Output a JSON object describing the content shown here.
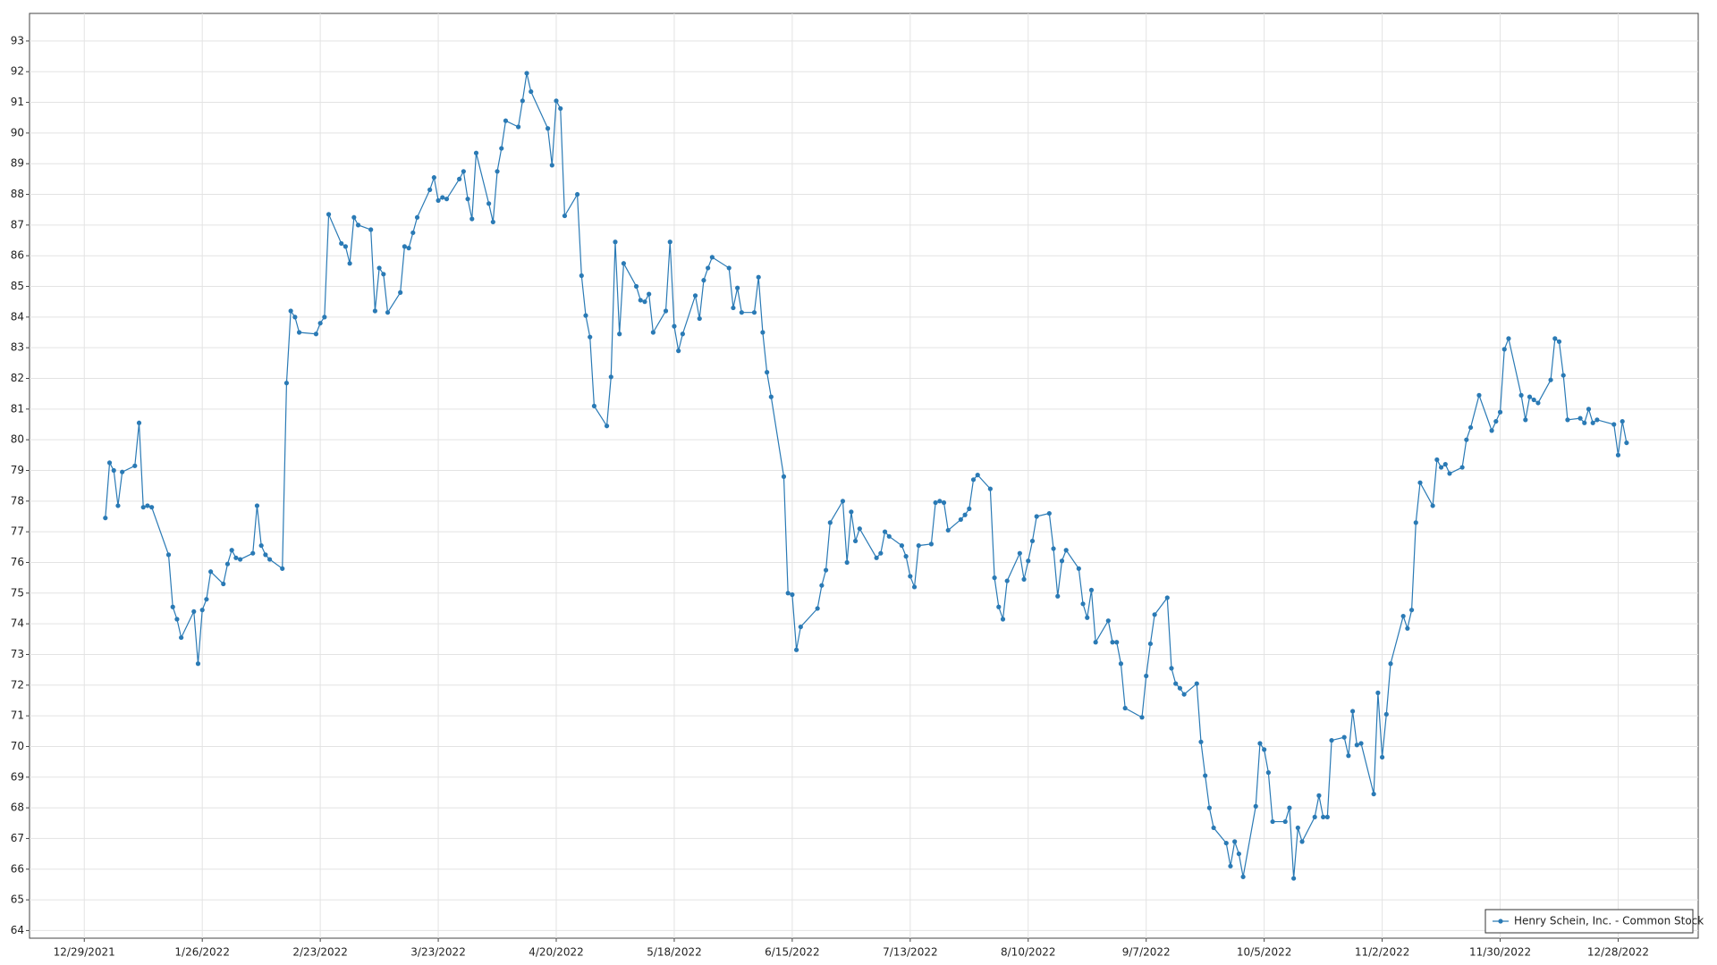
{
  "chart_data": {
    "type": "line",
    "legend": "lower right",
    "grid": true,
    "xlim": [
      "12/16/2021",
      "1/16/2023"
    ],
    "xticks": [
      "12/29/2021",
      "1/26/2022",
      "2/23/2022",
      "3/23/2022",
      "4/20/2022",
      "5/18/2022",
      "6/15/2022",
      "7/13/2022",
      "8/10/2022",
      "9/7/2022",
      "10/5/2022",
      "11/2/2022",
      "11/30/2022",
      "12/28/2022"
    ],
    "ylim": [
      63.75,
      93.9
    ],
    "yticks": [
      64,
      65,
      66,
      67,
      68,
      69,
      70,
      71,
      72,
      73,
      74,
      75,
      76,
      77,
      78,
      79,
      80,
      81,
      82,
      83,
      84,
      85,
      86,
      87,
      88,
      89,
      90,
      91,
      92,
      93
    ],
    "x": [
      "1/3/2022",
      "1/4/2022",
      "1/5/2022",
      "1/6/2022",
      "1/7/2022",
      "1/10/2022",
      "1/11/2022",
      "1/12/2022",
      "1/13/2022",
      "1/14/2022",
      "1/18/2022",
      "1/19/2022",
      "1/20/2022",
      "1/21/2022",
      "1/24/2022",
      "1/25/2022",
      "1/26/2022",
      "1/27/2022",
      "1/28/2022",
      "1/31/2022",
      "2/1/2022",
      "2/2/2022",
      "2/3/2022",
      "2/4/2022",
      "2/7/2022",
      "2/8/2022",
      "2/9/2022",
      "2/10/2022",
      "2/11/2022",
      "2/14/2022",
      "2/15/2022",
      "2/16/2022",
      "2/17/2022",
      "2/18/2022",
      "2/22/2022",
      "2/23/2022",
      "2/24/2022",
      "2/25/2022",
      "2/28/2022",
      "3/1/2022",
      "3/2/2022",
      "3/3/2022",
      "3/4/2022",
      "3/7/2022",
      "3/8/2022",
      "3/9/2022",
      "3/10/2022",
      "3/11/2022",
      "3/14/2022",
      "3/15/2022",
      "3/16/2022",
      "3/17/2022",
      "3/18/2022",
      "3/21/2022",
      "3/22/2022",
      "3/23/2022",
      "3/24/2022",
      "3/25/2022",
      "3/28/2022",
      "3/29/2022",
      "3/30/2022",
      "3/31/2022",
      "4/1/2022",
      "4/4/2022",
      "4/5/2022",
      "4/6/2022",
      "4/7/2022",
      "4/8/2022",
      "4/11/2022",
      "4/12/2022",
      "4/13/2022",
      "4/14/2022",
      "4/18/2022",
      "4/19/2022",
      "4/20/2022",
      "4/21/2022",
      "4/22/2022",
      "4/25/2022",
      "4/26/2022",
      "4/27/2022",
      "4/28/2022",
      "4/29/2022",
      "5/2/2022",
      "5/3/2022",
      "5/4/2022",
      "5/5/2022",
      "5/6/2022",
      "5/9/2022",
      "5/10/2022",
      "5/11/2022",
      "5/12/2022",
      "5/13/2022",
      "5/16/2022",
      "5/17/2022",
      "5/18/2022",
      "5/19/2022",
      "5/20/2022",
      "5/23/2022",
      "5/24/2022",
      "5/25/2022",
      "5/26/2022",
      "5/27/2022",
      "5/31/2022",
      "6/1/2022",
      "6/2/2022",
      "6/3/2022",
      "6/6/2022",
      "6/7/2022",
      "6/8/2022",
      "6/9/2022",
      "6/10/2022",
      "6/13/2022",
      "6/14/2022",
      "6/15/2022",
      "6/16/2022",
      "6/17/2022",
      "6/21/2022",
      "6/22/2022",
      "6/23/2022",
      "6/24/2022",
      "6/27/2022",
      "6/28/2022",
      "6/29/2022",
      "6/30/2022",
      "7/1/2022",
      "7/5/2022",
      "7/6/2022",
      "7/7/2022",
      "7/8/2022",
      "7/11/2022",
      "7/12/2022",
      "7/13/2022",
      "7/14/2022",
      "7/15/2022",
      "7/18/2022",
      "7/19/2022",
      "7/20/2022",
      "7/21/2022",
      "7/22/2022",
      "7/25/2022",
      "7/26/2022",
      "7/27/2022",
      "7/28/2022",
      "7/29/2022",
      "8/1/2022",
      "8/2/2022",
      "8/3/2022",
      "8/4/2022",
      "8/5/2022",
      "8/8/2022",
      "8/9/2022",
      "8/10/2022",
      "8/11/2022",
      "8/12/2022",
      "8/15/2022",
      "8/16/2022",
      "8/17/2022",
      "8/18/2022",
      "8/19/2022",
      "8/22/2022",
      "8/23/2022",
      "8/24/2022",
      "8/25/2022",
      "8/26/2022",
      "8/29/2022",
      "8/30/2022",
      "8/31/2022",
      "9/1/2022",
      "9/2/2022",
      "9/6/2022",
      "9/7/2022",
      "9/8/2022",
      "9/9/2022",
      "9/12/2022",
      "9/13/2022",
      "9/14/2022",
      "9/15/2022",
      "9/16/2022",
      "9/19/2022",
      "9/20/2022",
      "9/21/2022",
      "9/22/2022",
      "9/23/2022",
      "9/26/2022",
      "9/27/2022",
      "9/28/2022",
      "9/29/2022",
      "9/30/2022",
      "10/3/2022",
      "10/4/2022",
      "10/5/2022",
      "10/6/2022",
      "10/7/2022",
      "10/10/2022",
      "10/11/2022",
      "10/12/2022",
      "10/13/2022",
      "10/14/2022",
      "10/17/2022",
      "10/18/2022",
      "10/19/2022",
      "10/20/2022",
      "10/21/2022",
      "10/24/2022",
      "10/25/2022",
      "10/26/2022",
      "10/27/2022",
      "10/28/2022",
      "10/31/2022",
      "11/1/2022",
      "11/2/2022",
      "11/3/2022",
      "11/4/2022",
      "11/7/2022",
      "11/8/2022",
      "11/9/2022",
      "11/10/2022",
      "11/11/2022",
      "11/14/2022",
      "11/15/2022",
      "11/16/2022",
      "11/17/2022",
      "11/18/2022",
      "11/21/2022",
      "11/22/2022",
      "11/23/2022",
      "11/25/2022",
      "11/28/2022",
      "11/29/2022",
      "11/30/2022",
      "12/1/2022",
      "12/2/2022",
      "12/5/2022",
      "12/6/2022",
      "12/7/2022",
      "12/8/2022",
      "12/9/2022",
      "12/12/2022",
      "12/13/2022",
      "12/14/2022",
      "12/15/2022",
      "12/16/2022",
      "12/19/2022",
      "12/20/2022",
      "12/21/2022",
      "12/22/2022",
      "12/23/2022",
      "12/27/2022",
      "12/28/2022",
      "12/29/2022",
      "12/30/2022"
    ],
    "series": [
      {
        "name": "Henry Schein, Inc. - Common Stock",
        "color": "#2a7ab5",
        "values": [
          77.45,
          79.25,
          79.0,
          77.85,
          78.95,
          79.15,
          80.55,
          77.8,
          77.85,
          77.8,
          76.25,
          74.55,
          74.15,
          73.55,
          74.4,
          72.7,
          74.45,
          74.8,
          75.7,
          75.3,
          75.95,
          76.4,
          76.15,
          76.1,
          76.3,
          77.85,
          76.55,
          76.25,
          76.1,
          75.8,
          81.85,
          84.2,
          84.0,
          83.5,
          83.45,
          83.8,
          84.0,
          87.35,
          86.4,
          86.3,
          85.75,
          87.25,
          87.0,
          86.85,
          84.2,
          85.6,
          85.4,
          84.15,
          84.8,
          86.3,
          86.25,
          86.75,
          87.25,
          88.15,
          88.55,
          87.8,
          87.9,
          87.85,
          88.5,
          88.75,
          87.85,
          87.2,
          89.35,
          87.7,
          87.1,
          88.75,
          89.5,
          90.4,
          90.2,
          91.05,
          91.95,
          91.35,
          90.15,
          88.95,
          91.05,
          90.8,
          87.3,
          88.0,
          85.35,
          84.05,
          83.35,
          81.1,
          80.45,
          82.05,
          86.45,
          83.45,
          85.75,
          85.0,
          84.55,
          84.5,
          84.75,
          83.5,
          84.2,
          86.45,
          83.7,
          82.9,
          83.45,
          84.7,
          83.95,
          85.2,
          85.6,
          85.95,
          85.6,
          84.3,
          84.95,
          84.15,
          84.15,
          85.3,
          83.5,
          82.2,
          81.4,
          78.8,
          75.0,
          74.95,
          73.15,
          73.9,
          74.5,
          75.25,
          75.75,
          77.3,
          78.0,
          76.0,
          77.65,
          76.7,
          77.1,
          76.15,
          76.3,
          77.0,
          76.85,
          76.55,
          76.2,
          75.55,
          75.2,
          76.55,
          76.6,
          77.95,
          78.0,
          77.95,
          77.05,
          77.4,
          77.55,
          77.75,
          78.7,
          78.85,
          78.4,
          75.5,
          74.55,
          74.15,
          75.4,
          76.3,
          75.45,
          76.05,
          76.7,
          77.5,
          77.6,
          76.45,
          74.9,
          76.05,
          76.4,
          75.8,
          74.65,
          74.2,
          75.1,
          73.4,
          74.1,
          73.4,
          73.4,
          72.7,
          71.25,
          70.95,
          72.3,
          73.35,
          74.3,
          74.85,
          72.55,
          72.05,
          71.9,
          71.7,
          72.05,
          70.15,
          69.05,
          68.0,
          67.35,
          66.85,
          66.1,
          66.9,
          66.5,
          65.75,
          68.05,
          70.1,
          69.9,
          69.15,
          67.55,
          67.55,
          68.0,
          65.7,
          67.35,
          66.9,
          67.7,
          68.4,
          67.7,
          67.7,
          70.2,
          70.3,
          69.7,
          71.15,
          70.05,
          70.1,
          68.45,
          71.75,
          69.65,
          71.05,
          72.7,
          74.25,
          73.85,
          74.45,
          77.3,
          78.6,
          77.85,
          79.35,
          79.1,
          79.2,
          78.9,
          79.1,
          80.0,
          80.4,
          81.45,
          80.3,
          80.6,
          80.9,
          82.95,
          83.3,
          81.45,
          80.65,
          81.4,
          81.3,
          81.2,
          81.95,
          83.3,
          83.2,
          82.1,
          80.65,
          80.7,
          80.55,
          81.0,
          80.55,
          80.65,
          80.5,
          79.5,
          80.6,
          79.9
        ]
      }
    ]
  }
}
